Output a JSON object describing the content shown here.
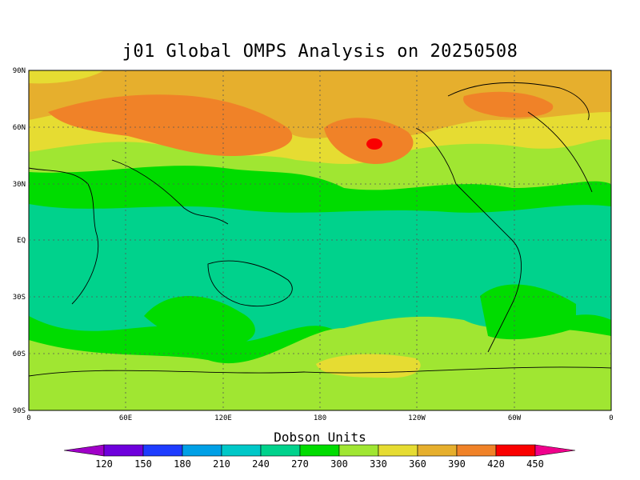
{
  "title": "j01 Global OMPS Analysis on 20250508",
  "colorbar": {
    "title": "Dobson Units",
    "tick_labels": [
      "120",
      "150",
      "180",
      "210",
      "240",
      "270",
      "300",
      "330",
      "360",
      "390",
      "420",
      "450"
    ],
    "colors": [
      "#a000c8",
      "#6e00dc",
      "#1e3cff",
      "#00a0e6",
      "#00c8c8",
      "#00d28c",
      "#00dc00",
      "#a0e632",
      "#e6dc32",
      "#e6af2d",
      "#f08228",
      "#fa0000",
      "#f0008c"
    ]
  },
  "axes": {
    "lat_labels": [
      "90N",
      "60N",
      "30N",
      "EQ",
      "30S",
      "60S",
      "90S"
    ],
    "lon_labels": [
      "0",
      "60E",
      "120E",
      "180",
      "120W",
      "60W",
      "0"
    ]
  },
  "chart_data": {
    "type": "heatmap",
    "title": "j01 Global OMPS Analysis on 20250508",
    "units": "Dobson Units",
    "levels": [
      120,
      150,
      180,
      210,
      240,
      270,
      300,
      330,
      360,
      390,
      420,
      450
    ],
    "xlim": [
      0,
      360
    ],
    "ylim": [
      -90,
      90
    ],
    "zonal_bands": [
      {
        "lat_range": [
          60,
          90
        ],
        "dominant_value_DU": 375
      },
      {
        "lat_range": [
          40,
          60
        ],
        "dominant_value_DU": 400
      },
      {
        "lat_range": [
          25,
          40
        ],
        "dominant_value_DU": 330
      },
      {
        "lat_range": [
          15,
          25
        ],
        "dominant_value_DU": 300
      },
      {
        "lat_range": [
          -30,
          15
        ],
        "dominant_value_DU": 285
      },
      {
        "lat_range": [
          -50,
          -30
        ],
        "dominant_value_DU": 310
      },
      {
        "lat_range": [
          -90,
          -50
        ],
        "dominant_value_DU": 340
      }
    ],
    "max_region": {
      "lat": 52,
      "lon": 210,
      "value_DU": 430
    }
  }
}
